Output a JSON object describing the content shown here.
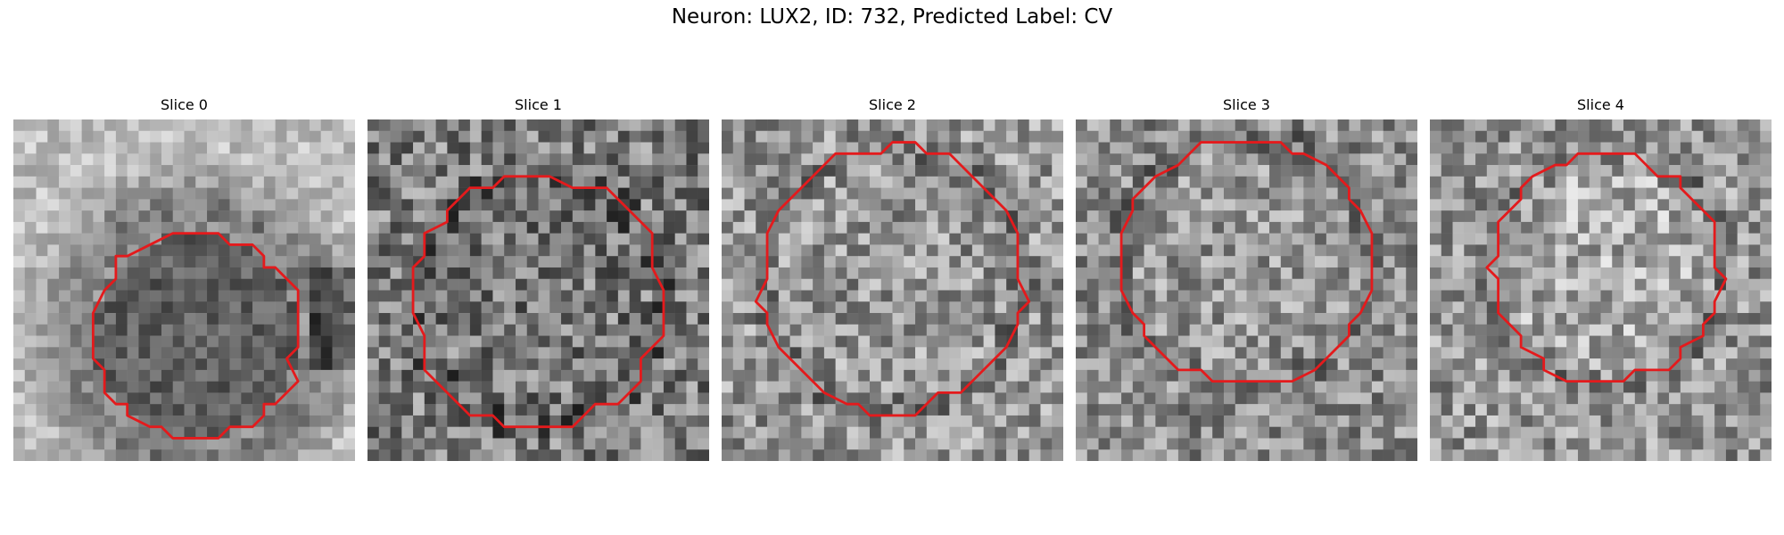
{
  "figure": {
    "title": "Neuron: LUX2, ID: 732, Predicted Label: CV",
    "colors": {
      "background": "#ffffff",
      "contour": "#e41a1c"
    },
    "panels": [
      {
        "title": "Slice 0"
      },
      {
        "title": "Slice 1"
      },
      {
        "title": "Slice 2"
      },
      {
        "title": "Slice 3"
      },
      {
        "title": "Slice 4"
      }
    ]
  }
}
